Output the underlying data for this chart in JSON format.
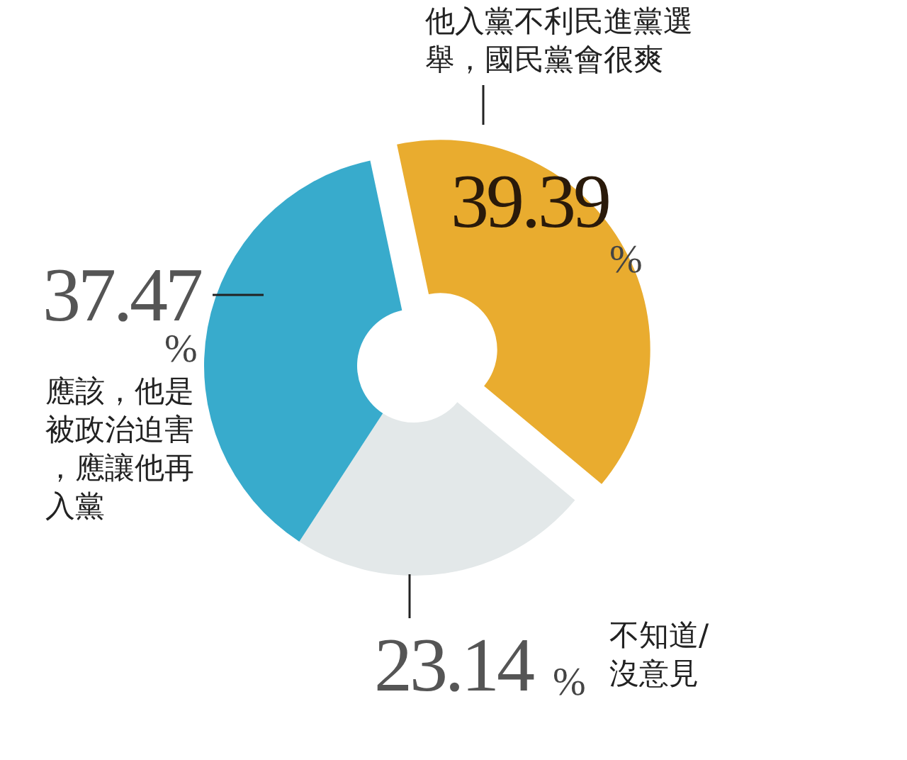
{
  "chart_data": {
    "type": "donut",
    "categories": [
      "他入黨不利民進黨選舉，國民黨會很爽",
      "不知道/沒意見",
      "應該，他是被政治迫害，應讓他再入黨"
    ],
    "values": [
      39.39,
      23.14,
      37.47
    ],
    "value_labels": [
      "39.39%",
      "23.14%",
      "37.47%"
    ],
    "colors": [
      "#e9ac2f",
      "#e3e8e9",
      "#38abcc"
    ]
  }
}
